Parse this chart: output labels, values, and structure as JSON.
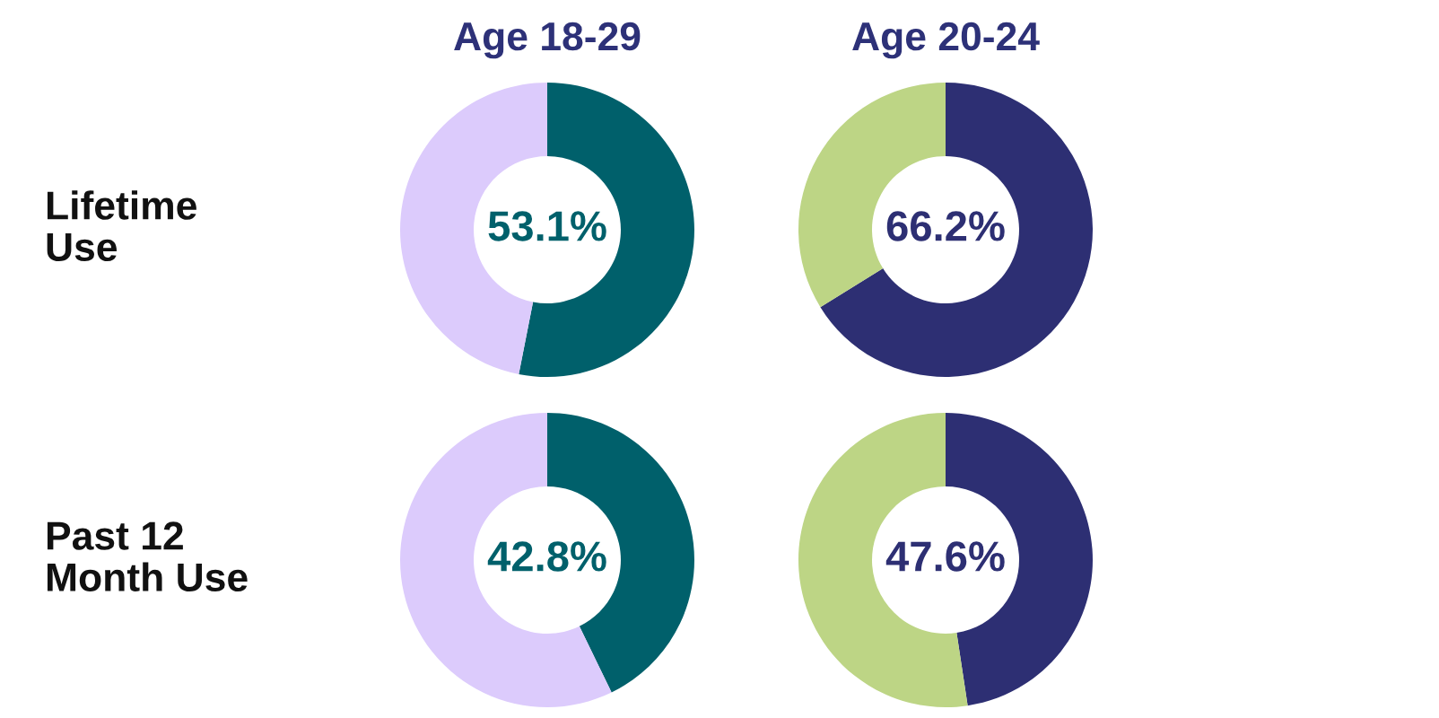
{
  "chart_data": [
    {
      "type": "donut",
      "title": "Age 18-29",
      "ylabel": "Lifetime\nUse",
      "categories": [
        null,
        null
      ],
      "values": [
        53.1,
        46.9
      ],
      "colors": [
        "#00606b",
        "#dccbfc"
      ],
      "value_labels": [
        "53.1%",
        null
      ]
    },
    {
      "type": "donut",
      "title": "Age 20-24",
      "categories": [
        null,
        null
      ],
      "values": [
        66.2,
        33.8
      ],
      "colors": [
        "#2d2f73",
        "#bdd585"
      ],
      "value_labels": [
        "66.2%",
        null
      ]
    },
    {
      "type": "donut",
      "ylabel": "Past 12\nMonth Use",
      "categories": [
        null,
        null
      ],
      "values": [
        42.8,
        57.2
      ],
      "colors": [
        "#00606b",
        "#dccbfc"
      ],
      "value_labels": [
        "42.8%",
        null
      ]
    },
    {
      "type": "donut",
      "categories": [
        null,
        null
      ],
      "values": [
        47.6,
        52.4
      ],
      "colors": [
        "#2d2f73",
        "#bdd585"
      ],
      "value_labels": [
        "47.6%",
        null
      ]
    }
  ]
}
